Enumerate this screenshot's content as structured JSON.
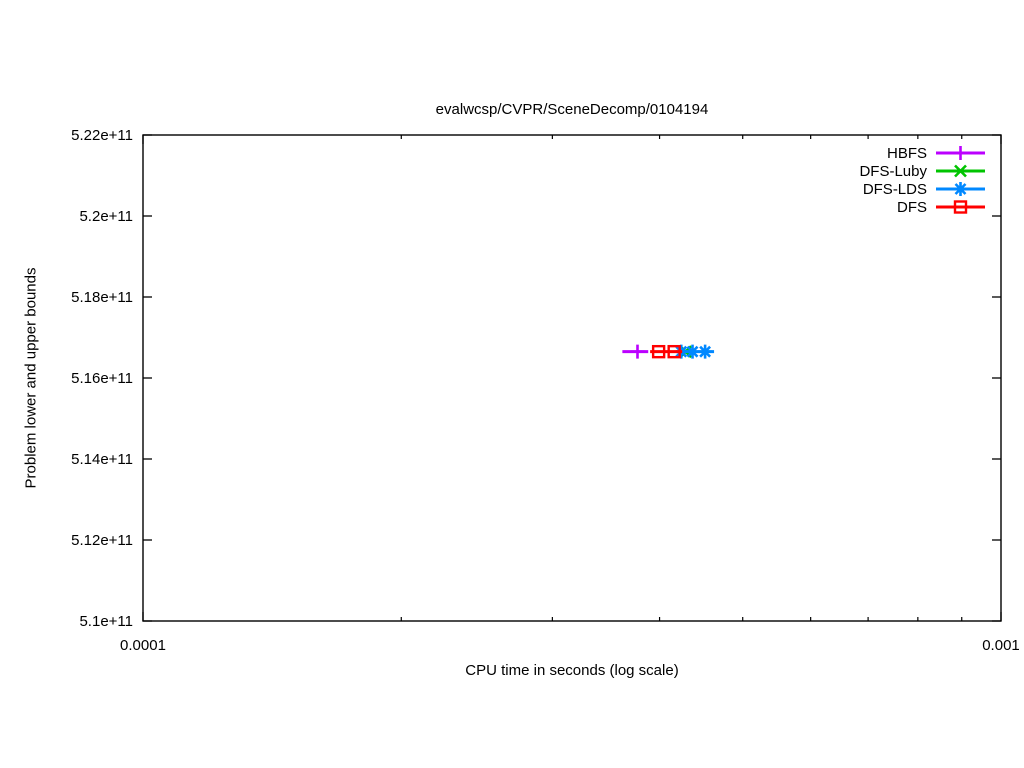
{
  "page": {
    "background": "#ffffff",
    "text_color": "#000000"
  },
  "chart_data": {
    "type": "line",
    "title": "evalwcsp/CVPR/SceneDecomp/0104194",
    "xlabel": "CPU time in seconds (log scale)",
    "ylabel": "Problem lower and upper bounds",
    "x_scale": "log",
    "xlim": [
      0.0001,
      0.001
    ],
    "ylim": [
      510000000000,
      522000000000
    ],
    "grid": false,
    "legend_position": "top-right-inside",
    "x_ticks": [
      {
        "value": 0.0001,
        "label": "0.0001"
      },
      {
        "value": 0.001,
        "label": "0.001"
      }
    ],
    "y_ticks": [
      {
        "value": 510000000000,
        "label": "5.1e+11"
      },
      {
        "value": 512000000000,
        "label": "5.12e+11"
      },
      {
        "value": 514000000000,
        "label": "5.14e+11"
      },
      {
        "value": 516000000000,
        "label": "5.16e+11"
      },
      {
        "value": 518000000000,
        "label": "5.18e+11"
      },
      {
        "value": 520000000000,
        "label": "5.2e+11"
      },
      {
        "value": 522000000000,
        "label": "5.22e+11"
      }
    ],
    "series": [
      {
        "name": "HBFS",
        "color": "#bb00ff",
        "marker": "plus",
        "y": 516650000000,
        "line_x": [
          0.000362,
          0.000388
        ],
        "marker_x": [
          0.000377
        ]
      },
      {
        "name": "DFS-Luby",
        "color": "#00c400",
        "marker": "x",
        "y": 516650000000,
        "line_x": [
          0.000422,
          0.000436
        ],
        "marker_x": [
          0.000429
        ]
      },
      {
        "name": "DFS-LDS",
        "color": "#0088ff",
        "marker": "asterisk",
        "y": 516650000000,
        "line_x": [
          0.000418,
          0.000463
        ],
        "marker_x": [
          0.000424,
          0.000437,
          0.000452
        ]
      },
      {
        "name": "DFS",
        "color": "#ff0000",
        "marker": "square",
        "y": 516650000000,
        "line_x": [
          0.00039,
          0.000425
        ],
        "marker_x": [
          0.000399,
          0.000416
        ]
      }
    ]
  }
}
